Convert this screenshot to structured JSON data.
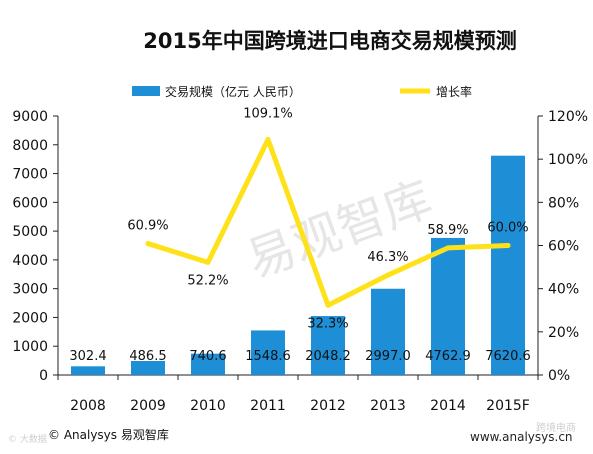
{
  "chart_data": {
    "type": "bar",
    "title": "2015年中国跨境进口电商交易规模预测",
    "categories": [
      "2008",
      "2009",
      "2010",
      "2011",
      "2012",
      "2013",
      "2014",
      "2015F"
    ],
    "series": [
      {
        "name": "交易规模（亿元 人民币）",
        "type": "bar",
        "axis": "left",
        "color": "#1e8fd6",
        "values": [
          302.4,
          486.5,
          740.6,
          1548.6,
          2048.2,
          2997.0,
          4762.9,
          7620.6
        ],
        "labels": [
          "302.4",
          "486.5",
          "740.6",
          "1548.6",
          "2048.2",
          "2997.0",
          "4762.9",
          "7620.6"
        ]
      },
      {
        "name": "增长率",
        "type": "line",
        "axis": "right",
        "color": "#ffe11a",
        "values": [
          null,
          60.9,
          52.2,
          109.1,
          32.3,
          46.3,
          58.9,
          60.0
        ],
        "labels": [
          "",
          "60.9%",
          "52.2%",
          "109.1%",
          "32.3%",
          "46.3%",
          "58.9%",
          "60.0%"
        ]
      }
    ],
    "ylim": [
      0,
      9000
    ],
    "yticks": [
      "0",
      "1000",
      "2000",
      "3000",
      "4000",
      "5000",
      "6000",
      "7000",
      "8000",
      "9000"
    ],
    "y2lim": [
      0,
      120
    ],
    "y2ticks": [
      "0%",
      "20%",
      "40%",
      "60%",
      "80%",
      "100%",
      "120%"
    ],
    "legend_position": "top",
    "grid": false
  },
  "watermark": "易观智库",
  "footer": {
    "left": "© Analysys 易观智库",
    "right": "www.analysys.cn"
  },
  "credits": {
    "left": "© 大数据",
    "right": "跨境电商"
  }
}
